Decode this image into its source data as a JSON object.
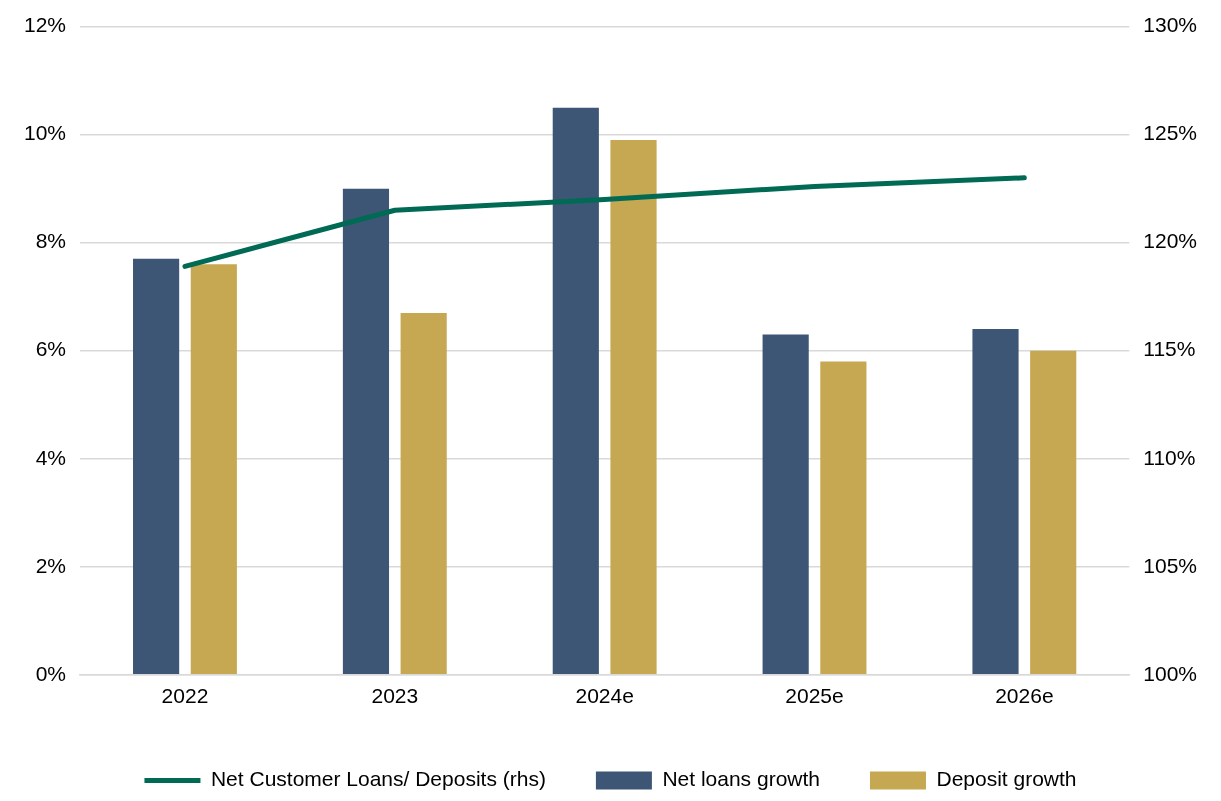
{
  "chart_data": {
    "type": "bar",
    "categories": [
      "2022",
      "2023",
      "2024e",
      "2025e",
      "2026e"
    ],
    "series": [
      {
        "name": "Net loans growth",
        "color": "#3d5675",
        "values": [
          7.7,
          9.0,
          10.5,
          6.3,
          6.4
        ]
      },
      {
        "name": "Deposit growth",
        "color": "#c6a752",
        "values": [
          7.6,
          6.7,
          9.9,
          5.8,
          6.0
        ]
      },
      {
        "name": "Net Customer Loans/ Deposits (rhs)",
        "color": "#006a55",
        "type": "line",
        "axis": "y2",
        "values": [
          118.9,
          121.5,
          122.0,
          122.6,
          123.0
        ]
      }
    ],
    "ylim": [
      0,
      12
    ],
    "yticks": [
      {
        "value": 0,
        "label": "0%"
      },
      {
        "value": 2,
        "label": "2%"
      },
      {
        "value": 4,
        "label": "4%"
      },
      {
        "value": 6,
        "label": "6%"
      },
      {
        "value": 8,
        "label": "8%"
      },
      {
        "value": 10,
        "label": "10%"
      },
      {
        "value": 12,
        "label": "12%"
      }
    ],
    "y2lim": [
      100,
      130
    ],
    "y2ticks": [
      {
        "value": 100,
        "label": "100%"
      },
      {
        "value": 105,
        "label": "105%"
      },
      {
        "value": 110,
        "label": "110%"
      },
      {
        "value": 115,
        "label": "115%"
      },
      {
        "value": 120,
        "label": "120%"
      },
      {
        "value": 125,
        "label": "125%"
      },
      {
        "value": 130,
        "label": "130%"
      }
    ],
    "grid": "y",
    "legend": "bottom"
  }
}
